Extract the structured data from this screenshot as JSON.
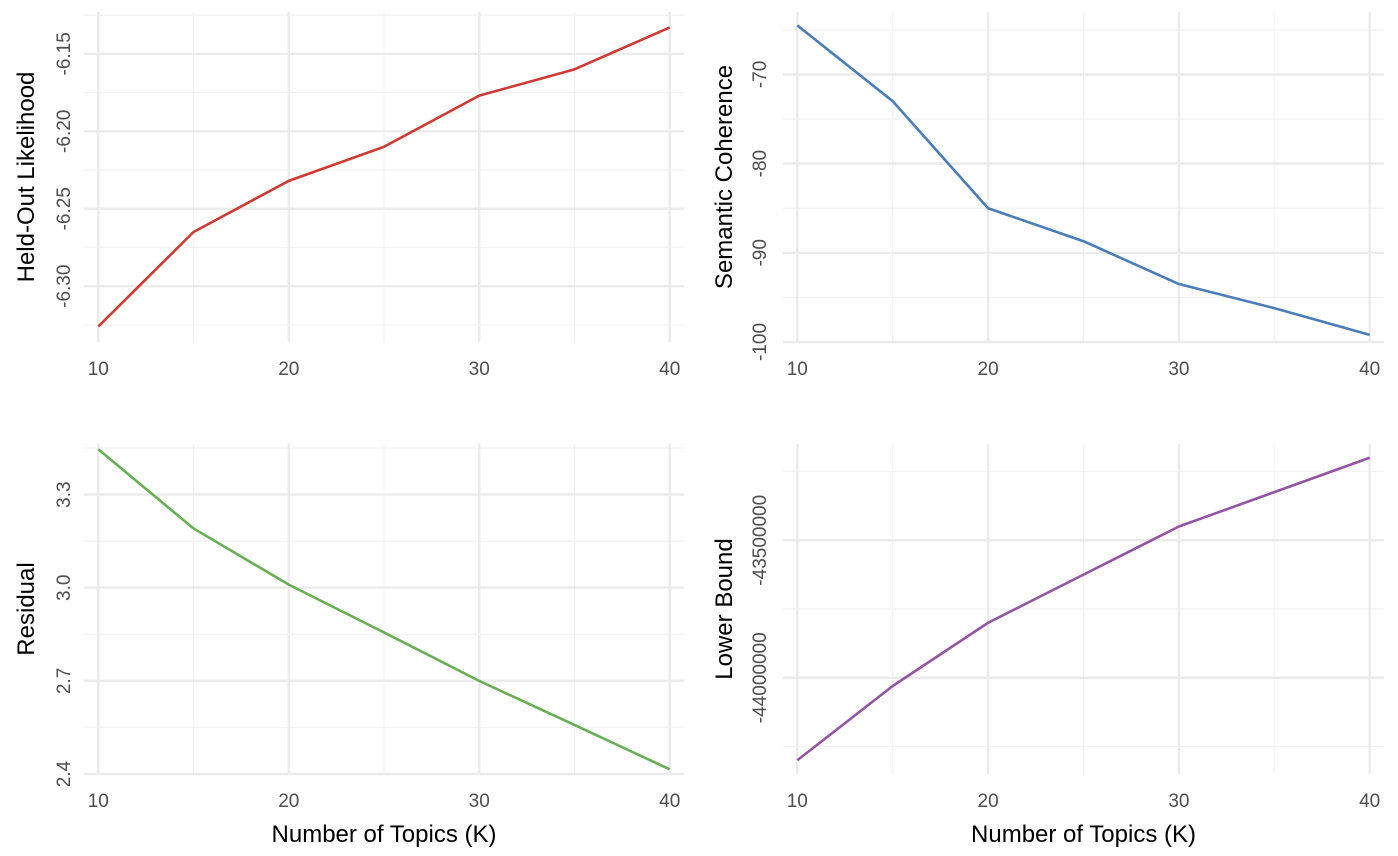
{
  "chart_data": [
    {
      "type": "line",
      "xlabel": "",
      "ylabel": "Held-Out Likelihood",
      "x": [
        10,
        15,
        20,
        25,
        30,
        35,
        40
      ],
      "series": [
        {
          "values": [
            -6.326,
            -6.265,
            -6.232,
            -6.21,
            -6.177,
            -6.16,
            -6.133
          ]
        }
      ],
      "color": "#CC3A33",
      "xlim": [
        9.25,
        40.75
      ],
      "ylim": [
        -6.336,
        -6.123
      ],
      "x_ticks": [
        10,
        20,
        30,
        40
      ],
      "x_tick_labels": [
        "10",
        "20",
        "30",
        "40"
      ],
      "y_ticks": [
        -6.3,
        -6.25,
        -6.2,
        -6.15
      ],
      "y_tick_labels": [
        "-6.30",
        "-6.25",
        "-6.20",
        "-6.15"
      ],
      "grid": true
    },
    {
      "type": "line",
      "xlabel": "",
      "ylabel": "Semantic Coherence",
      "x": [
        10,
        15,
        20,
        25,
        30,
        35,
        40
      ],
      "series": [
        {
          "values": [
            -64.5,
            -73.0,
            -85.0,
            -88.7,
            -93.5,
            -96.2,
            -99.2
          ]
        }
      ],
      "color": "#4A7DB5",
      "xlim": [
        9.25,
        40.75
      ],
      "ylim": [
        -100.0,
        -63.0
      ],
      "x_ticks": [
        10,
        20,
        30,
        40
      ],
      "x_tick_labels": [
        "10",
        "20",
        "30",
        "40"
      ],
      "y_ticks": [
        -100,
        -90,
        -80,
        -70
      ],
      "y_tick_labels": [
        "-100",
        "-90",
        "-80",
        "-70"
      ],
      "grid": true
    },
    {
      "type": "line",
      "xlabel": "Number of Topics (K)",
      "ylabel": "Residual",
      "x": [
        10,
        15,
        20,
        25,
        30,
        35,
        40
      ],
      "series": [
        {
          "values": [
            3.446,
            3.191,
            3.01,
            2.856,
            2.7,
            2.558,
            2.415
          ]
        }
      ],
      "color": "#67AE54",
      "xlim": [
        9.25,
        40.75
      ],
      "ylim": [
        2.4,
        3.463
      ],
      "x_ticks": [
        10,
        20,
        30,
        40
      ],
      "x_tick_labels": [
        "10",
        "20",
        "30",
        "40"
      ],
      "y_ticks": [
        2.4,
        2.7,
        3.0,
        3.3
      ],
      "y_tick_labels": [
        "2.4",
        "2.7",
        "3.0",
        "3.3"
      ],
      "grid": true
    },
    {
      "type": "line",
      "xlabel": "Number of Topics (K)",
      "ylabel": "Lower Bound",
      "x": [
        10,
        15,
        20,
        25,
        30,
        35,
        40
      ],
      "series": [
        {
          "values": [
            -44300000,
            -44030000,
            -43800000,
            -43625000,
            -43450000,
            -43325000,
            -43200000
          ]
        }
      ],
      "color": "#9355A1",
      "xlim": [
        9.25,
        40.75
      ],
      "ylim": [
        -44350000,
        -43150000
      ],
      "x_ticks": [
        10,
        20,
        30,
        40
      ],
      "x_tick_labels": [
        "10",
        "20",
        "30",
        "40"
      ],
      "y_ticks": [
        -44000000,
        -43500000
      ],
      "y_tick_labels": [
        "-44000000",
        "-43500000"
      ],
      "grid": true
    }
  ]
}
